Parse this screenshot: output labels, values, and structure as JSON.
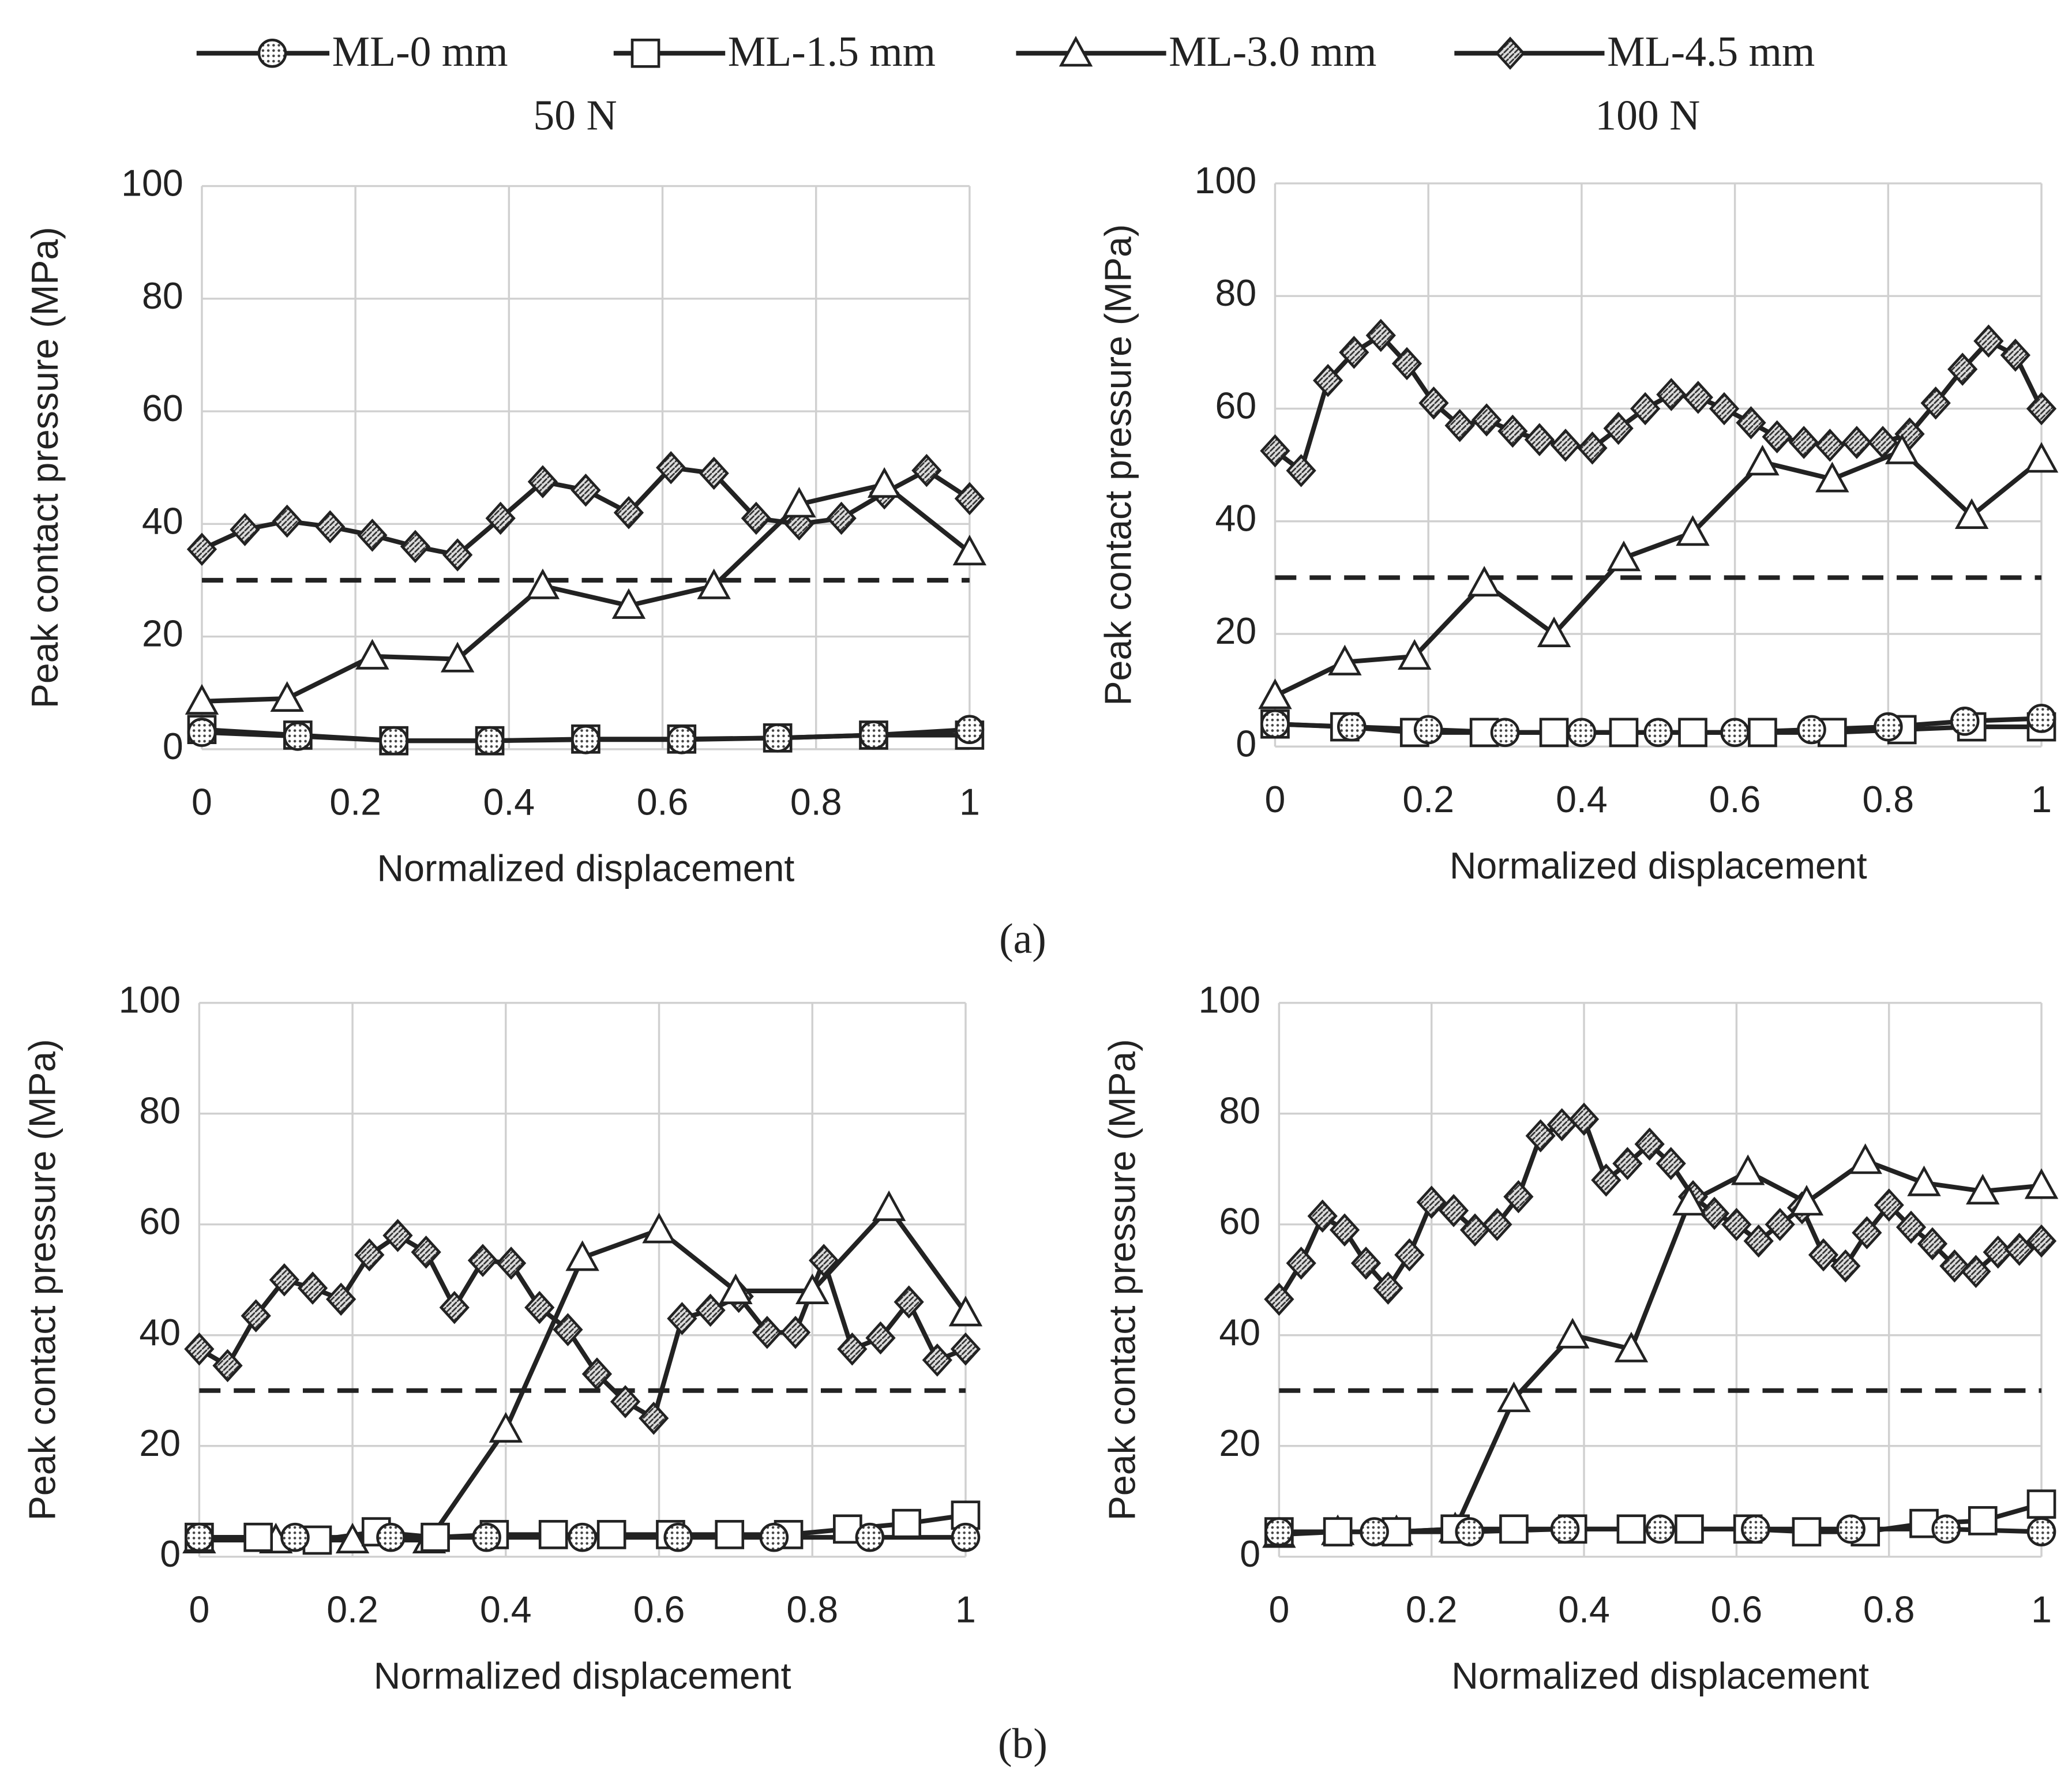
{
  "captions": [
    "(a)",
    "(b)"
  ],
  "chart_data": [
    {
      "type": "line",
      "title": "50 N",
      "xlabel": "Normalized displacement",
      "ylabel": "Peak contact pressure (MPa)",
      "xlim": [
        0,
        1
      ],
      "xticks": [
        0,
        0.2,
        0.4,
        0.6,
        0.8,
        1
      ],
      "ylim": [
        0,
        100
      ],
      "yticks": [
        0,
        20,
        40,
        60,
        80,
        100
      ],
      "grid": true,
      "hline": 30,
      "series": [
        {
          "name": "ML-0 mm",
          "marker": "circle",
          "color": "#222",
          "x": [
            0,
            0.125,
            0.25,
            0.375,
            0.5,
            0.625,
            0.75,
            0.875,
            1
          ],
          "values": [
            3,
            2.3,
            1.5,
            1.5,
            1.7,
            1.7,
            2,
            2.5,
            3.5
          ]
        },
        {
          "name": "ML-1.5 mm",
          "marker": "square",
          "color": "#222",
          "x": [
            0,
            0.125,
            0.25,
            0.375,
            0.5,
            0.625,
            0.75,
            0.875,
            1
          ],
          "values": [
            3.5,
            2.5,
            1.5,
            1.5,
            1.8,
            1.8,
            2,
            2.5,
            2.5
          ]
        },
        {
          "name": "ML-3.0 mm",
          "marker": "triangle",
          "color": "#222",
          "x": [
            0,
            0.111,
            0.222,
            0.333,
            0.444,
            0.556,
            0.667,
            0.778,
            0.889,
            1
          ],
          "values": [
            8.5,
            9,
            16.5,
            16,
            29,
            25.5,
            29,
            43.5,
            47,
            35
          ]
        },
        {
          "name": "ML-4.5 mm",
          "marker": "diamond",
          "color": "#222",
          "x": [
            0,
            0.056,
            0.111,
            0.167,
            0.222,
            0.278,
            0.333,
            0.389,
            0.444,
            0.5,
            0.556,
            0.611,
            0.667,
            0.722,
            0.778,
            0.833,
            0.889,
            0.944,
            1
          ],
          "values": [
            35.5,
            39,
            40.5,
            39.5,
            38,
            36,
            34.5,
            41,
            47.5,
            46,
            42,
            50,
            49,
            41,
            40,
            41,
            45.5,
            49.5,
            44.5
          ]
        }
      ]
    },
    {
      "type": "line",
      "title": "100 N",
      "xlabel": "Normalized displacement",
      "ylabel": "Peak contact pressure (MPa)",
      "xlim": [
        0,
        1
      ],
      "xticks": [
        0,
        0.2,
        0.4,
        0.6,
        0.8,
        1
      ],
      "ylim": [
        0,
        100
      ],
      "yticks": [
        0,
        20,
        40,
        60,
        80,
        100
      ],
      "grid": true,
      "hline": 30,
      "series": [
        {
          "marker": "circle",
          "color": "#222",
          "x": [
            0,
            0.1,
            0.2,
            0.3,
            0.4,
            0.5,
            0.6,
            0.7,
            0.8,
            0.9,
            1
          ],
          "values": [
            4,
            3.5,
            3,
            2.5,
            2.5,
            2.5,
            2.5,
            3,
            3.5,
            4.5,
            5
          ]
        },
        {
          "marker": "square",
          "color": "#222",
          "x": [
            0,
            0.091,
            0.182,
            0.273,
            0.364,
            0.455,
            0.545,
            0.636,
            0.727,
            0.818,
            0.909,
            1
          ],
          "values": [
            4,
            3.5,
            2.5,
            2.5,
            2.5,
            2.5,
            2.5,
            2.5,
            2.5,
            3,
            3.5,
            3.5
          ]
        },
        {
          "marker": "triangle",
          "color": "#222",
          "x": [
            0,
            0.091,
            0.182,
            0.273,
            0.364,
            0.455,
            0.545,
            0.636,
            0.727,
            0.818,
            0.909,
            1
          ],
          "values": [
            9,
            15,
            16,
            29,
            20,
            33.5,
            38,
            50.5,
            47.5,
            52.5,
            41,
            51
          ]
        },
        {
          "marker": "diamond",
          "color": "#222",
          "x": [
            0,
            0.034,
            0.069,
            0.103,
            0.138,
            0.172,
            0.207,
            0.241,
            0.276,
            0.31,
            0.345,
            0.379,
            0.414,
            0.448,
            0.483,
            0.517,
            0.552,
            0.586,
            0.621,
            0.655,
            0.69,
            0.724,
            0.759,
            0.793,
            0.828,
            0.862,
            0.897,
            0.931,
            0.966,
            1
          ],
          "values": [
            52.5,
            49,
            65,
            70,
            73,
            68,
            61,
            57,
            58,
            56,
            54.5,
            53.5,
            53,
            56.5,
            60,
            62.5,
            62,
            60,
            57.5,
            55,
            54,
            53.5,
            54,
            54,
            55.5,
            61,
            67,
            72,
            69.5,
            60
          ]
        }
      ]
    },
    {
      "type": "line",
      "xlabel": "Normalized displacement",
      "ylabel": "Peak contact pressure (MPa)",
      "xlim": [
        0,
        1
      ],
      "xticks": [
        0,
        0.2,
        0.4,
        0.6,
        0.8,
        1
      ],
      "ylim": [
        0,
        100
      ],
      "yticks": [
        0,
        20,
        40,
        60,
        80,
        100
      ],
      "grid": true,
      "hline": 30,
      "series": [
        {
          "marker": "circle",
          "color": "#222",
          "x": [
            0,
            0.125,
            0.25,
            0.375,
            0.5,
            0.625,
            0.75,
            0.875,
            1
          ],
          "values": [
            3.5,
            3.5,
            3.5,
            3.5,
            3.5,
            3.5,
            3.5,
            3.5,
            3.5
          ]
        },
        {
          "marker": "square",
          "color": "#222",
          "x": [
            0,
            0.077,
            0.154,
            0.231,
            0.308,
            0.385,
            0.462,
            0.538,
            0.615,
            0.692,
            0.769,
            0.846,
            0.923,
            1
          ],
          "values": [
            3.5,
            3.5,
            3,
            4.5,
            3.5,
            4,
            4,
            4,
            4,
            4,
            4,
            5,
            6,
            7.5
          ]
        },
        {
          "marker": "triangle",
          "color": "#222",
          "x": [
            0,
            0.1,
            0.2,
            0.3,
            0.4,
            0.5,
            0.6,
            0.7,
            0.8,
            0.9,
            1
          ],
          "values": [
            3,
            3,
            3,
            3,
            23,
            54,
            59,
            48,
            48,
            63,
            44
          ]
        },
        {
          "marker": "diamond",
          "color": "#222",
          "x": [
            0,
            0.037,
            0.074,
            0.111,
            0.148,
            0.185,
            0.222,
            0.259,
            0.296,
            0.333,
            0.37,
            0.407,
            0.444,
            0.481,
            0.519,
            0.556,
            0.593,
            0.63,
            0.667,
            0.704,
            0.741,
            0.778,
            0.815,
            0.852,
            0.889,
            0.926,
            0.963,
            1
          ],
          "values": [
            37.5,
            34.5,
            43.5,
            50,
            48.5,
            46.5,
            54.5,
            58,
            55,
            45,
            53.5,
            53,
            45,
            41,
            33,
            28,
            25,
            43,
            44.5,
            47,
            40.5,
            40.5,
            53.5,
            37.5,
            39.5,
            46,
            35.5,
            37.5
          ]
        }
      ]
    },
    {
      "type": "line",
      "xlabel": "Normalized displacement",
      "ylabel": "Peak contact pressure (MPa)",
      "xlim": [
        0,
        1
      ],
      "xticks": [
        0,
        0.2,
        0.4,
        0.6,
        0.8,
        1
      ],
      "ylim": [
        0,
        100
      ],
      "yticks": [
        0,
        20,
        40,
        60,
        80,
        100
      ],
      "grid": true,
      "hline": 30,
      "series": [
        {
          "marker": "circle",
          "color": "#222",
          "x": [
            0,
            0.125,
            0.25,
            0.375,
            0.5,
            0.625,
            0.75,
            0.875,
            1
          ],
          "values": [
            4.5,
            4.5,
            4.5,
            5,
            5,
            5,
            5,
            5,
            4.5
          ]
        },
        {
          "marker": "square",
          "color": "#222",
          "x": [
            0,
            0.077,
            0.154,
            0.231,
            0.308,
            0.385,
            0.462,
            0.538,
            0.615,
            0.692,
            0.769,
            0.846,
            0.923,
            1
          ],
          "values": [
            4.5,
            4.5,
            4.5,
            5,
            5,
            5,
            5,
            5,
            5,
            4.5,
            4.5,
            6,
            6.5,
            9.5
          ]
        },
        {
          "marker": "triangle",
          "color": "#222",
          "x": [
            0,
            0.077,
            0.154,
            0.231,
            0.308,
            0.385,
            0.462,
            0.538,
            0.615,
            0.692,
            0.769,
            0.846,
            0.923,
            1
          ],
          "values": [
            4,
            4.5,
            4.5,
            5,
            28.5,
            40,
            37.5,
            64,
            69.5,
            64,
            71.5,
            67.5,
            66,
            67
          ]
        },
        {
          "marker": "diamond",
          "color": "#222",
          "x": [
            0,
            0.029,
            0.057,
            0.086,
            0.114,
            0.143,
            0.171,
            0.2,
            0.229,
            0.257,
            0.286,
            0.314,
            0.343,
            0.371,
            0.4,
            0.429,
            0.457,
            0.486,
            0.514,
            0.543,
            0.571,
            0.6,
            0.629,
            0.657,
            0.686,
            0.714,
            0.743,
            0.771,
            0.8,
            0.829,
            0.857,
            0.886,
            0.914,
            0.943,
            0.971,
            1
          ],
          "values": [
            46.5,
            53,
            61.5,
            59,
            53,
            48.5,
            54.5,
            64,
            62.5,
            59,
            60,
            65,
            76,
            78,
            79,
            68,
            71,
            74.5,
            71,
            65,
            62,
            60,
            57,
            60,
            63,
            54.5,
            52.5,
            58.5,
            63.5,
            59.5,
            56.5,
            52.5,
            51.5,
            55,
            55.5,
            57
          ]
        }
      ]
    }
  ]
}
